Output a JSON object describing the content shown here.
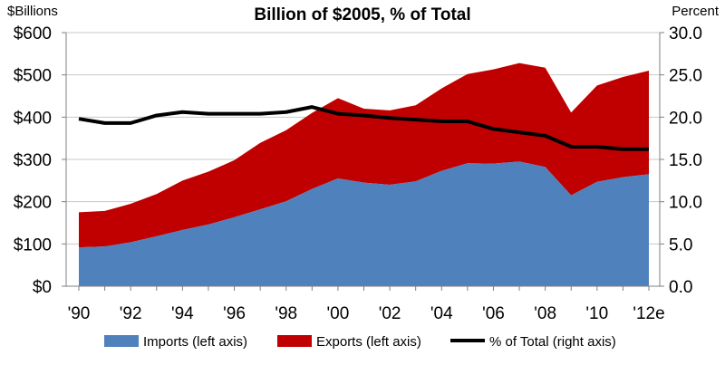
{
  "chart_data": {
    "type": "area",
    "title": "Billion of $2005, % of Total",
    "left_axis_label": "$Billions",
    "right_axis_label": "Percent",
    "left_ylim": [
      0,
      600
    ],
    "right_ylim": [
      0,
      30
    ],
    "left_ticks": [
      "$0",
      "$100",
      "$200",
      "$300",
      "$400",
      "$500",
      "$600"
    ],
    "right_ticks": [
      "0.0",
      "5.0",
      "10.0",
      "15.0",
      "20.0",
      "25.0",
      "30.0"
    ],
    "x_tick_labels": [
      "'90",
      "'92",
      "'94",
      "'96",
      "'98",
      "'00",
      "'02",
      "'04",
      "'06",
      "'08",
      "'10",
      "'12e"
    ],
    "x": [
      "1990",
      "1991",
      "1992",
      "1993",
      "1994",
      "1995",
      "1996",
      "1997",
      "1998",
      "1999",
      "2000",
      "2001",
      "2002",
      "2003",
      "2004",
      "2005",
      "2006",
      "2007",
      "2008",
      "2009",
      "2010",
      "2011",
      "2012e"
    ],
    "series": [
      {
        "name": "Imports (left axis)",
        "type": "area",
        "axis": "left",
        "color": "#4F81BD",
        "values": [
          92,
          94,
          104,
          118,
          133,
          146,
          163,
          182,
          201,
          230,
          255,
          245,
          240,
          248,
          273,
          291,
          290,
          295,
          282,
          215,
          247,
          258,
          265
        ]
      },
      {
        "name": "Exports (left axis)",
        "type": "area",
        "axis": "left",
        "stacked_on": "Imports (left axis)",
        "color": "#C00000",
        "values": [
          83,
          84,
          91,
          100,
          117,
          125,
          135,
          157,
          168,
          180,
          190,
          175,
          176,
          180,
          195,
          211,
          223,
          233,
          235,
          196,
          228,
          237,
          245
        ]
      },
      {
        "name": "% of Total (right axis)",
        "type": "line",
        "axis": "right",
        "color": "#000000",
        "values": [
          19.8,
          19.3,
          19.3,
          20.2,
          20.6,
          20.4,
          20.4,
          20.4,
          20.6,
          21.2,
          20.4,
          20.2,
          19.9,
          19.7,
          19.5,
          19.5,
          18.6,
          18.2,
          17.8,
          16.5,
          16.5,
          16.2,
          16.2
        ]
      }
    ],
    "grid": "horizontal",
    "legend_position": "bottom"
  }
}
